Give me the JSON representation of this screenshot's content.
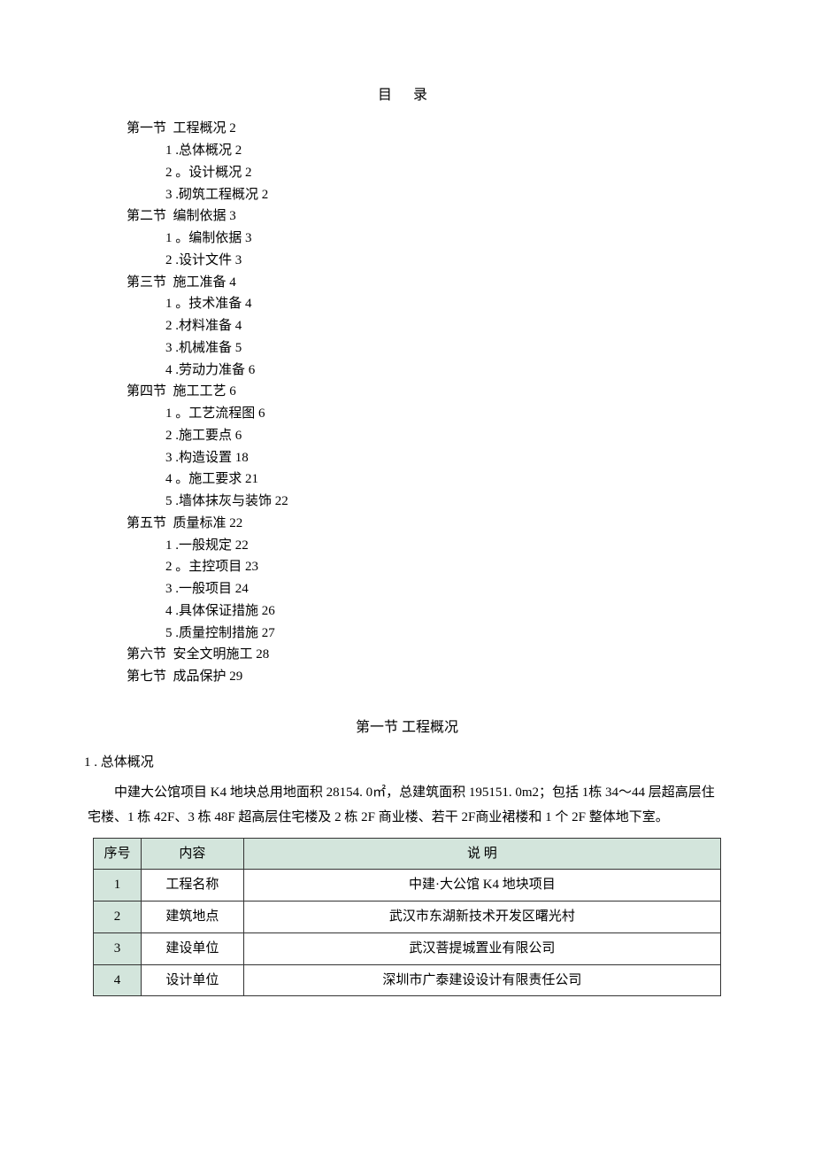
{
  "toc": {
    "title": "目  录",
    "sections": [
      {
        "label": "第一节  工程概况 2",
        "subs": [
          {
            "label": "1 .总体概况 2"
          },
          {
            "label": "2 。设计概况 2"
          },
          {
            "label": "3 .砌筑工程概况 2"
          }
        ]
      },
      {
        "label": "第二节  编制依据 3",
        "subs": [
          {
            "label": "1 。编制依据 3"
          },
          {
            "label": "2 .设计文件 3"
          }
        ]
      },
      {
        "label": "第三节  施工准备 4",
        "subs": [
          {
            "label": "1 。技术准备 4"
          },
          {
            "label": "2 .材料准备 4"
          },
          {
            "label": "3 .机械准备 5"
          },
          {
            "label": "4 .劳动力准备 6"
          }
        ]
      },
      {
        "label": "第四节  施工工艺 6",
        "subs": [
          {
            "label": "1 。工艺流程图 6"
          },
          {
            "label": "2 .施工要点 6"
          },
          {
            "label": "3 .构造设置 18"
          },
          {
            "label": "4 。施工要求 21"
          },
          {
            "label": "5 .墙体抹灰与装饰 22"
          }
        ]
      },
      {
        "label": "第五节  质量标准 22",
        "subs": [
          {
            "label": "1 .一般规定 22"
          },
          {
            "label": "2 。主控项目 23"
          },
          {
            "label": "3 .一般项目 24"
          },
          {
            "label": "4 .具体保证措施 26"
          },
          {
            "label": "5 .质量控制措施 27"
          }
        ]
      },
      {
        "label": "第六节  安全文明施工 28",
        "subs": []
      },
      {
        "label": "第七节  成品保护 29",
        "subs": []
      }
    ]
  },
  "section1": {
    "title": "第一节 工程概况",
    "sub1": {
      "heading": "1 . 总体概况",
      "p1": "中建大公馆项目 K4 地块总用地面积 28154. 0㎡，总建筑面积 195151. 0m2；包括 1栋 34～44 层超高层住宅楼、1 栋 42F、3 栋 48F 超高层住宅楼及 2 栋 2F 商业楼、若干 2F商业裙楼和 1 个 2F 整体地下室。"
    }
  },
  "table": {
    "headers": [
      "序号",
      "内容",
      "说 明"
    ],
    "rows": [
      {
        "idx": "1",
        "content": "工程名称",
        "desc": "中建·大公馆 K4 地块项目"
      },
      {
        "idx": "2",
        "content": "建筑地点",
        "desc": "武汉市东湖新技术开发区曙光村"
      },
      {
        "idx": "3",
        "content": "建设单位",
        "desc": "武汉菩提城置业有限公司"
      },
      {
        "idx": "4",
        "content": "设计单位",
        "desc": "深圳市广泰建设设计有限责任公司"
      }
    ],
    "styling": {
      "header_bg": "#d3e5dc",
      "idx_bg": "#d3e5dc",
      "border_color": "#333333",
      "font_size": 15,
      "col_widths": {
        "idx": 54,
        "content": 116,
        "desc": 540
      }
    }
  },
  "colors": {
    "page_bg": "#ffffff",
    "text": "#000000"
  }
}
